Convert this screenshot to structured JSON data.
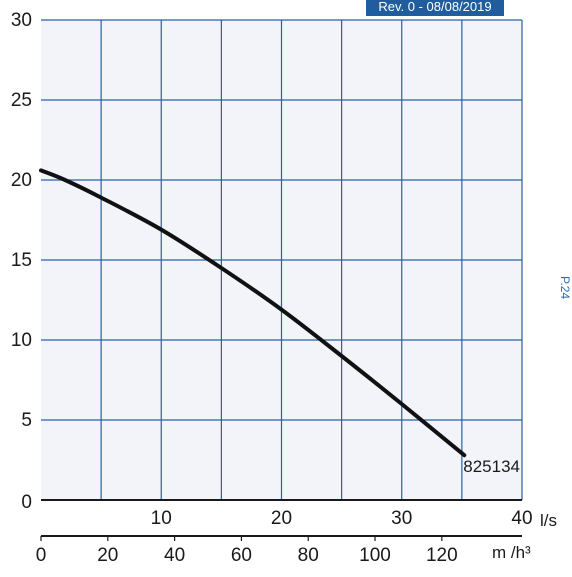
{
  "header": {
    "revision_label": "Rev. 0 - 08/08/2019"
  },
  "side_mark": {
    "text": "P.24"
  },
  "colors": {
    "grid": "#2a5fa5",
    "axis": "#1a1a1a",
    "curve": "#111111",
    "label": "#1f4e79",
    "plot_bg": "#f2f4fa",
    "badge": "#1f5d9e"
  },
  "chart_data": {
    "type": "line",
    "title": "",
    "xlabel": "l/s",
    "x2label": "m /h³",
    "ylabel": "",
    "xlim": [
      0,
      40
    ],
    "x2lim": [
      0,
      144
    ],
    "ylim": [
      0,
      30
    ],
    "x_ticks": [
      10,
      20,
      30,
      40
    ],
    "x2_ticks": [
      0,
      20,
      40,
      60,
      80,
      100,
      120
    ],
    "y_ticks": [
      0,
      5,
      10,
      15,
      20,
      25,
      30
    ],
    "grid": true,
    "series": [
      {
        "name": "825134",
        "x": [
          0,
          2,
          5,
          10,
          15,
          20,
          25,
          30,
          35.2
        ],
        "y": [
          20.6,
          20.0,
          18.9,
          16.9,
          14.5,
          11.9,
          9.0,
          6.0,
          2.8
        ]
      }
    ]
  }
}
